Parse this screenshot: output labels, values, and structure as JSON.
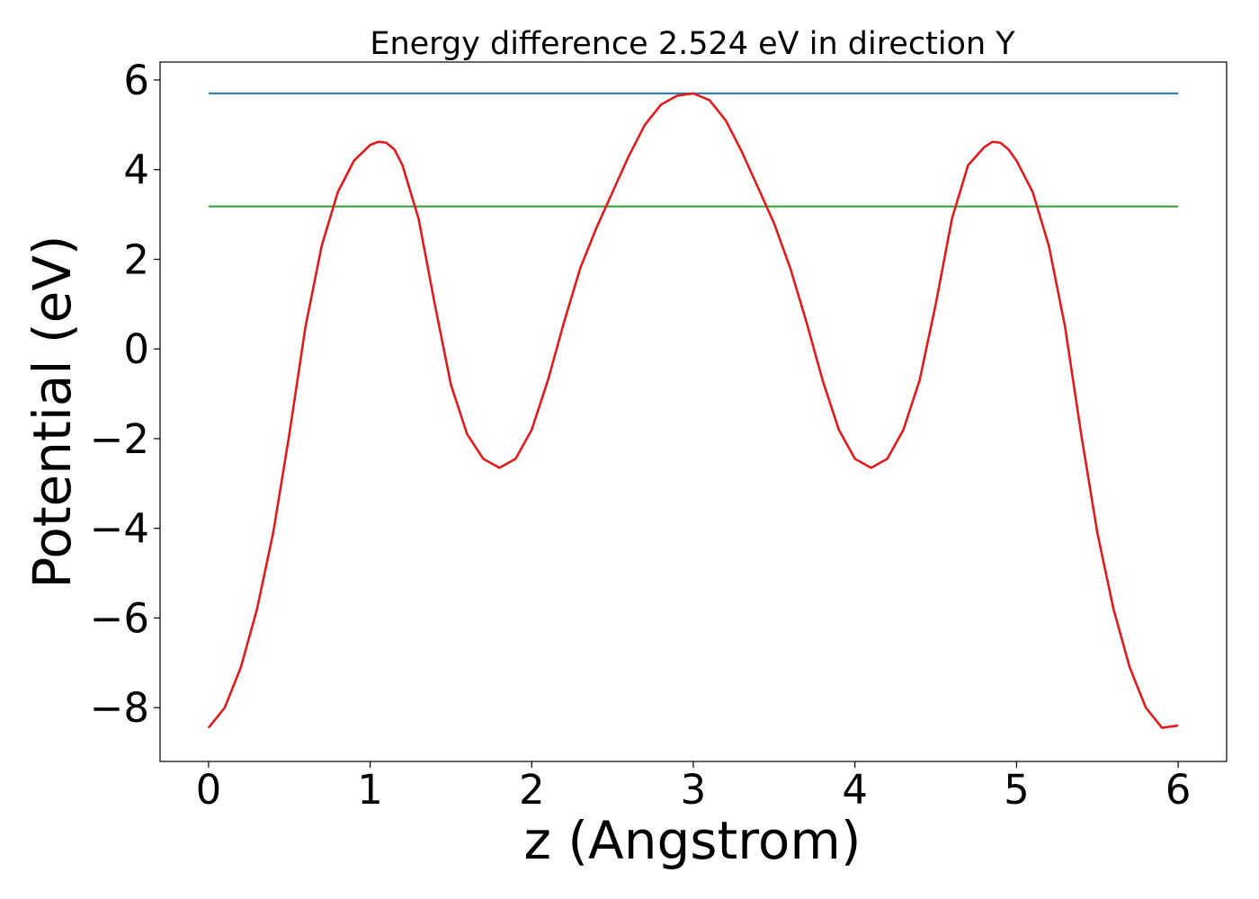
{
  "chart_data": {
    "type": "line",
    "title": "Energy difference 2.524 eV in direction Y",
    "xlabel": "z (Angstrom)",
    "ylabel": "Potential (eV)",
    "xlim": [
      -0.3,
      6.3
    ],
    "ylim": [
      -9.2,
      6.4
    ],
    "x_ticks": [
      0,
      1,
      2,
      3,
      4,
      5,
      6
    ],
    "x_tick_labels": [
      "0",
      "1",
      "2",
      "3",
      "4",
      "5",
      "6"
    ],
    "y_ticks": [
      6,
      4,
      2,
      0,
      -2,
      -4,
      -6,
      -8
    ],
    "y_tick_labels": [
      "6",
      "4",
      "2",
      "0",
      "−2",
      "−4",
      "−6",
      "−8"
    ],
    "grid": false,
    "series": [
      {
        "color": "#1f77b4",
        "x": [
          0,
          6
        ],
        "y": [
          5.7,
          5.7
        ]
      },
      {
        "color": "#2ca02c",
        "x": [
          0,
          6
        ],
        "y": [
          3.18,
          3.18
        ]
      },
      {
        "color": "#e31a1c",
        "x": [
          0,
          0.1,
          0.2,
          0.3,
          0.4,
          0.5,
          0.6,
          0.7,
          0.8,
          0.9,
          1.0,
          1.05,
          1.1,
          1.15,
          1.2,
          1.3,
          1.4,
          1.5,
          1.6,
          1.7,
          1.8,
          1.9,
          2.0,
          2.1,
          2.2,
          2.3,
          2.4,
          2.5,
          2.6,
          2.7,
          2.8,
          2.9,
          3.0,
          3.1,
          3.2,
          3.3,
          3.4,
          3.5,
          3.6,
          3.7,
          3.8,
          3.9,
          4.0,
          4.1,
          4.2,
          4.3,
          4.4,
          4.5,
          4.6,
          4.7,
          4.8,
          4.85,
          4.9,
          4.95,
          5.0,
          5.1,
          5.2,
          5.3,
          5.4,
          5.5,
          5.6,
          5.7,
          5.8,
          5.9,
          6.0
        ],
        "y": [
          -8.45,
          -8.0,
          -7.1,
          -5.8,
          -4.1,
          -1.9,
          0.5,
          2.3,
          3.5,
          4.2,
          4.55,
          4.62,
          4.6,
          4.45,
          4.1,
          2.9,
          1.0,
          -0.8,
          -1.9,
          -2.45,
          -2.65,
          -2.45,
          -1.8,
          -0.7,
          0.6,
          1.8,
          2.7,
          3.5,
          4.3,
          5.0,
          5.45,
          5.65,
          5.7,
          5.55,
          5.1,
          4.4,
          3.6,
          2.8,
          1.8,
          0.6,
          -0.7,
          -1.8,
          -2.45,
          -2.65,
          -2.45,
          -1.8,
          -0.7,
          1.0,
          2.9,
          4.1,
          4.5,
          4.62,
          4.6,
          4.45,
          4.2,
          3.5,
          2.3,
          0.5,
          -1.9,
          -4.1,
          -5.8,
          -7.1,
          -8.0,
          -8.45,
          -8.4
        ]
      }
    ]
  }
}
